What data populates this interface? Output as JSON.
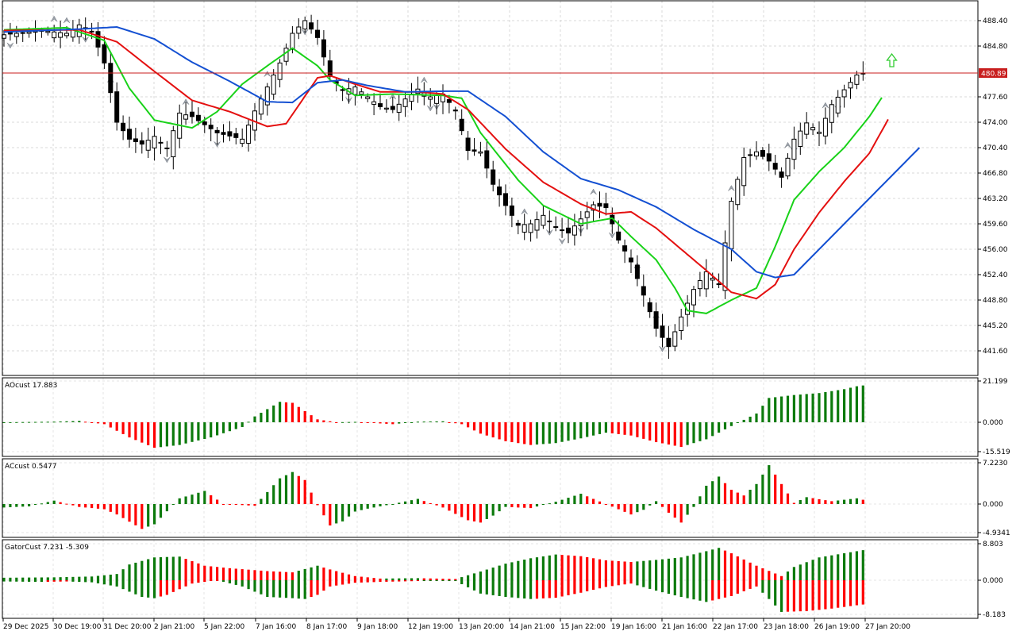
{
  "main": {
    "ticks": [
      "488.40",
      "484.80",
      "477.60",
      "474.00",
      "470.40",
      "466.80",
      "463.20",
      "459.60",
      "456.00",
      "452.40",
      "448.80",
      "445.20",
      "441.60"
    ],
    "price_label": "480.89",
    "colors": {
      "bull_border": "#000000",
      "bear_fill": "#000000",
      "green_line": "#19d219",
      "red_line": "#e41010",
      "blue_line": "#1450d2",
      "price_line": "#c81e1e",
      "arrow": "#33cc33"
    }
  },
  "panes": {
    "ao": {
      "title": "AOcust 17.883",
      "ticks": [
        "21.199",
        "0.000",
        "-15.519"
      ]
    },
    "ac": {
      "title": "ACcust 0.5477",
      "ticks": [
        "7.2230",
        "0.000",
        "-4.9341"
      ]
    },
    "gator": {
      "title": "GatorCust 7.231 -5.309",
      "ticks": [
        "8.803",
        "0.000",
        "-8.183"
      ]
    }
  },
  "time_labels": [
    "29 Dec 2025",
    "30 Dec 19:00",
    "31 Dec 20:00",
    "2 Jan 21:00",
    "5 Jan 22:00",
    "7 Jan 16:00",
    "8 Jan 17:00",
    "9 Jan 18:00",
    "12 Jan 19:00",
    "13 Jan 20:00",
    "14 Jan 21:00",
    "15 Jan 22:00",
    "19 Jan 16:00",
    "21 Jan 16:00",
    "22 Jan 17:00",
    "23 Jan 18:00",
    "26 Jan 19:00",
    "27 Jan 20:00"
  ],
  "chart_data": [
    {
      "type": "candlestick",
      "title": "",
      "ylim": [
        439.4,
        490.2
      ],
      "close_anchors": [
        [
          0,
          486.4
        ],
        [
          6,
          487.0
        ],
        [
          10,
          486.6
        ],
        [
          12,
          487.8
        ],
        [
          14,
          486.9
        ],
        [
          16,
          482.4
        ],
        [
          18,
          474.0
        ],
        [
          20,
          471.6
        ],
        [
          22,
          470.9
        ],
        [
          24,
          472.0
        ],
        [
          26,
          470.3
        ],
        [
          28,
          475.3
        ],
        [
          30,
          474.8
        ],
        [
          34,
          472.5
        ],
        [
          38,
          471.6
        ],
        [
          40,
          475.6
        ],
        [
          44,
          482.4
        ],
        [
          46,
          486.6
        ],
        [
          48,
          488.4
        ],
        [
          50,
          486.0
        ],
        [
          52,
          480.5
        ],
        [
          54,
          478.5
        ],
        [
          56,
          479.0
        ],
        [
          58,
          477.6
        ],
        [
          60,
          476.2
        ],
        [
          62,
          475.8
        ],
        [
          64,
          477.3
        ],
        [
          66,
          478.7
        ],
        [
          68,
          477.6
        ],
        [
          70,
          478.0
        ],
        [
          72,
          475.6
        ],
        [
          74,
          470.0
        ],
        [
          76,
          469.8
        ],
        [
          78,
          465.2
        ],
        [
          80,
          462.2
        ],
        [
          82,
          459.4
        ],
        [
          84,
          459.6
        ],
        [
          86,
          460.8
        ],
        [
          88,
          459.2
        ],
        [
          90,
          458.3
        ],
        [
          92,
          460.3
        ],
        [
          94,
          462.3
        ],
        [
          96,
          461.9
        ],
        [
          98,
          457.3
        ],
        [
          100,
          454.2
        ],
        [
          102,
          449.5
        ],
        [
          104,
          444.8
        ],
        [
          106,
          442.2
        ],
        [
          108,
          446.4
        ],
        [
          110,
          450.3
        ],
        [
          112,
          452.8
        ],
        [
          114,
          451.0
        ],
        [
          116,
          462.8
        ],
        [
          118,
          469.0
        ],
        [
          120,
          469.8
        ],
        [
          122,
          468.5
        ],
        [
          124,
          466.2
        ],
        [
          126,
          471.6
        ],
        [
          128,
          473.9
        ],
        [
          130,
          472.6
        ],
        [
          132,
          476.5
        ],
        [
          134,
          478.6
        ],
        [
          136,
          480.7
        ],
        [
          137,
          480.9
        ]
      ],
      "series": [
        {
          "name": "",
          "color": "green",
          "anchors": [
            [
              0,
              487.1
            ],
            [
              10,
              487.4
            ],
            [
              16,
              485.6
            ],
            [
              20,
              478.8
            ],
            [
              24,
              474.3
            ],
            [
              30,
              473.2
            ],
            [
              34,
              475.5
            ],
            [
              38,
              479.4
            ],
            [
              42,
              482.0
            ],
            [
              46,
              484.5
            ],
            [
              50,
              482.0
            ],
            [
              52,
              480.0
            ],
            [
              56,
              477.8
            ],
            [
              62,
              478.0
            ],
            [
              70,
              477.8
            ],
            [
              73,
              477.4
            ],
            [
              76,
              472.5
            ],
            [
              82,
              465.8
            ],
            [
              86,
              462.2
            ],
            [
              92,
              459.6
            ],
            [
              97,
              460.4
            ],
            [
              100,
              457.8
            ],
            [
              104,
              454.5
            ],
            [
              107,
              450.5
            ],
            [
              109,
              447.3
            ],
            [
              112,
              446.9
            ],
            [
              116,
              448.8
            ],
            [
              120,
              450.5
            ],
            [
              123,
              456.4
            ],
            [
              126,
              463.0
            ],
            [
              130,
              467.0
            ],
            [
              134,
              470.4
            ],
            [
              138,
              474.8
            ],
            [
              140,
              477.5
            ]
          ]
        },
        {
          "name": "",
          "color": "red",
          "anchors": [
            [
              0,
              487.0
            ],
            [
              12,
              487.1
            ],
            [
              18,
              485.4
            ],
            [
              24,
              481.2
            ],
            [
              30,
              477.1
            ],
            [
              36,
              475.5
            ],
            [
              42,
              473.4
            ],
            [
              45,
              473.8
            ],
            [
              50,
              480.3
            ],
            [
              52,
              480.6
            ],
            [
              56,
              479.4
            ],
            [
              60,
              478.3
            ],
            [
              66,
              478.3
            ],
            [
              70,
              478.0
            ],
            [
              74,
              475.8
            ],
            [
              80,
              470.2
            ],
            [
              86,
              465.5
            ],
            [
              92,
              462.4
            ],
            [
              96,
              461.0
            ],
            [
              100,
              461.3
            ],
            [
              104,
              459.0
            ],
            [
              108,
              456.0
            ],
            [
              112,
              453.0
            ],
            [
              116,
              449.9
            ],
            [
              120,
              449.0
            ],
            [
              123,
              451.0
            ],
            [
              126,
              456.0
            ],
            [
              130,
              461.2
            ],
            [
              134,
              465.6
            ],
            [
              138,
              469.6
            ],
            [
              141,
              474.4
            ]
          ]
        },
        {
          "name": "",
          "color": "blue",
          "anchors": [
            [
              0,
              486.8
            ],
            [
              12,
              487.2
            ],
            [
              18,
              487.5
            ],
            [
              24,
              485.8
            ],
            [
              30,
              482.5
            ],
            [
              36,
              479.8
            ],
            [
              42,
              476.9
            ],
            [
              46,
              476.8
            ],
            [
              50,
              479.6
            ],
            [
              54,
              480.0
            ],
            [
              58,
              479.2
            ],
            [
              64,
              478.3
            ],
            [
              70,
              478.4
            ],
            [
              74,
              478.4
            ],
            [
              80,
              474.8
            ],
            [
              86,
              469.8
            ],
            [
              92,
              466.0
            ],
            [
              98,
              464.4
            ],
            [
              104,
              462.0
            ],
            [
              110,
              458.8
            ],
            [
              116,
              456.0
            ],
            [
              120,
              452.8
            ],
            [
              123,
              452.0
            ],
            [
              126,
              452.4
            ],
            [
              130,
              456.0
            ],
            [
              134,
              459.6
            ],
            [
              138,
              463.2
            ],
            [
              142,
              466.8
            ],
            [
              146,
              470.4
            ]
          ]
        }
      ]
    },
    {
      "type": "bar",
      "title": "AOcust 17.883",
      "ylim": [
        -15.519,
        21.199
      ],
      "anchors": [
        [
          0,
          0.0
        ],
        [
          8,
          0.3
        ],
        [
          12,
          0.7
        ],
        [
          16,
          -1.0
        ],
        [
          20,
          -8.0
        ],
        [
          24,
          -13.5
        ],
        [
          28,
          -12.0
        ],
        [
          33,
          -8.0
        ],
        [
          38,
          -2.5
        ],
        [
          40,
          3.0
        ],
        [
          44,
          10.5
        ],
        [
          46,
          10.0
        ],
        [
          50,
          1.5
        ],
        [
          53,
          0.0
        ],
        [
          56,
          0.2
        ],
        [
          62,
          -1.0
        ],
        [
          66,
          0.3
        ],
        [
          70,
          0.5
        ],
        [
          73,
          -1.0
        ],
        [
          76,
          -6.0
        ],
        [
          80,
          -10.0
        ],
        [
          84,
          -12.0
        ],
        [
          88,
          -11.0
        ],
        [
          92,
          -8.5
        ],
        [
          96,
          -5.5
        ],
        [
          100,
          -7.0
        ],
        [
          104,
          -10.5
        ],
        [
          108,
          -13.0
        ],
        [
          112,
          -9.0
        ],
        [
          116,
          -2.0
        ],
        [
          120,
          4.5
        ],
        [
          122,
          12.5
        ],
        [
          126,
          14.0
        ],
        [
          130,
          15.0
        ],
        [
          134,
          17.0
        ],
        [
          136,
          18.5
        ],
        [
          138,
          19.3
        ],
        [
          140,
          18.8
        ]
      ]
    },
    {
      "type": "bar",
      "title": "ACcust 0.5477",
      "ylim": [
        -4.9341,
        7.223
      ],
      "anchors": [
        [
          0,
          -0.6
        ],
        [
          4,
          -0.4
        ],
        [
          8,
          0.6
        ],
        [
          12,
          -0.5
        ],
        [
          16,
          -0.9
        ],
        [
          18,
          -1.8
        ],
        [
          22,
          -4.3
        ],
        [
          24,
          -3.5
        ],
        [
          28,
          1.0
        ],
        [
          32,
          2.3
        ],
        [
          35,
          0.0
        ],
        [
          40,
          -0.3
        ],
        [
          44,
          4.5
        ],
        [
          46,
          5.6
        ],
        [
          48,
          4.2
        ],
        [
          50,
          -0.2
        ],
        [
          52,
          -3.7
        ],
        [
          54,
          -3.0
        ],
        [
          56,
          -1.3
        ],
        [
          58,
          -0.8
        ],
        [
          62,
          0.0
        ],
        [
          66,
          0.9
        ],
        [
          70,
          -0.6
        ],
        [
          74,
          -2.8
        ],
        [
          76,
          -3.2
        ],
        [
          78,
          -2.0
        ],
        [
          80,
          -0.5
        ],
        [
          84,
          -0.7
        ],
        [
          88,
          0.4
        ],
        [
          92,
          1.8
        ],
        [
          96,
          0.0
        ],
        [
          100,
          -1.8
        ],
        [
          102,
          -1.0
        ],
        [
          104,
          0.5
        ],
        [
          106,
          -1.5
        ],
        [
          108,
          -3.2
        ],
        [
          110,
          -0.5
        ],
        [
          112,
          3.2
        ],
        [
          114,
          4.8
        ],
        [
          116,
          2.5
        ],
        [
          118,
          1.5
        ],
        [
          120,
          3.5
        ],
        [
          122,
          6.8
        ],
        [
          124,
          3.5
        ],
        [
          126,
          0.2
        ],
        [
          128,
          1.2
        ],
        [
          132,
          0.5
        ],
        [
          136,
          1.0
        ],
        [
          138,
          0.5
        ]
      ]
    },
    {
      "type": "histogram",
      "title": "GatorCust 7.231 -5.309",
      "ylim": [
        -8.183,
        8.803
      ],
      "upper_anchors": [
        [
          0,
          0.6
        ],
        [
          8,
          0.7
        ],
        [
          14,
          0.9
        ],
        [
          18,
          1.5
        ],
        [
          20,
          3.8
        ],
        [
          24,
          5.5
        ],
        [
          28,
          5.7
        ],
        [
          32,
          3.5
        ],
        [
          36,
          2.9
        ],
        [
          42,
          2.2
        ],
        [
          46,
          1.9
        ],
        [
          50,
          3.5
        ],
        [
          52,
          2.6
        ],
        [
          56,
          1.0
        ],
        [
          60,
          0.4
        ],
        [
          66,
          0.5
        ],
        [
          72,
          0.3
        ],
        [
          76,
          2.1
        ],
        [
          80,
          4.0
        ],
        [
          84,
          5.3
        ],
        [
          88,
          6.2
        ],
        [
          92,
          5.8
        ],
        [
          96,
          4.8
        ],
        [
          100,
          4.4
        ],
        [
          104,
          4.9
        ],
        [
          108,
          5.5
        ],
        [
          112,
          7.0
        ],
        [
          114,
          7.8
        ],
        [
          116,
          6.5
        ],
        [
          120,
          3.5
        ],
        [
          124,
          1.0
        ],
        [
          126,
          3.2
        ],
        [
          130,
          5.5
        ],
        [
          134,
          6.5
        ],
        [
          138,
          7.5
        ],
        [
          142,
          7.7
        ]
      ],
      "lower_anchors": [
        [
          0,
          -0.3
        ],
        [
          6,
          -0.4
        ],
        [
          10,
          -0.3
        ],
        [
          14,
          -0.5
        ],
        [
          18,
          -1.5
        ],
        [
          22,
          -4.0
        ],
        [
          24,
          -4.3
        ],
        [
          26,
          -3.5
        ],
        [
          30,
          -0.8
        ],
        [
          34,
          0.0
        ],
        [
          38,
          -1.5
        ],
        [
          42,
          -4.0
        ],
        [
          46,
          -4.3
        ],
        [
          48,
          -4.5
        ],
        [
          50,
          -3.5
        ],
        [
          52,
          -1.5
        ],
        [
          56,
          -0.6
        ],
        [
          60,
          -0.4
        ],
        [
          66,
          -0.2
        ],
        [
          72,
          -0.2
        ],
        [
          76,
          -3.2
        ],
        [
          80,
          -4.0
        ],
        [
          84,
          -4.5
        ],
        [
          88,
          -4.2
        ],
        [
          92,
          -3.0
        ],
        [
          96,
          -1.6
        ],
        [
          100,
          -0.8
        ],
        [
          104,
          -2.5
        ],
        [
          108,
          -4.0
        ],
        [
          112,
          -5.2
        ],
        [
          116,
          -3.8
        ],
        [
          120,
          -1.5
        ],
        [
          122,
          -4.5
        ],
        [
          124,
          -7.6
        ],
        [
          128,
          -7.4
        ],
        [
          132,
          -6.8
        ],
        [
          136,
          -6.0
        ],
        [
          140,
          -5.3
        ]
      ]
    }
  ]
}
